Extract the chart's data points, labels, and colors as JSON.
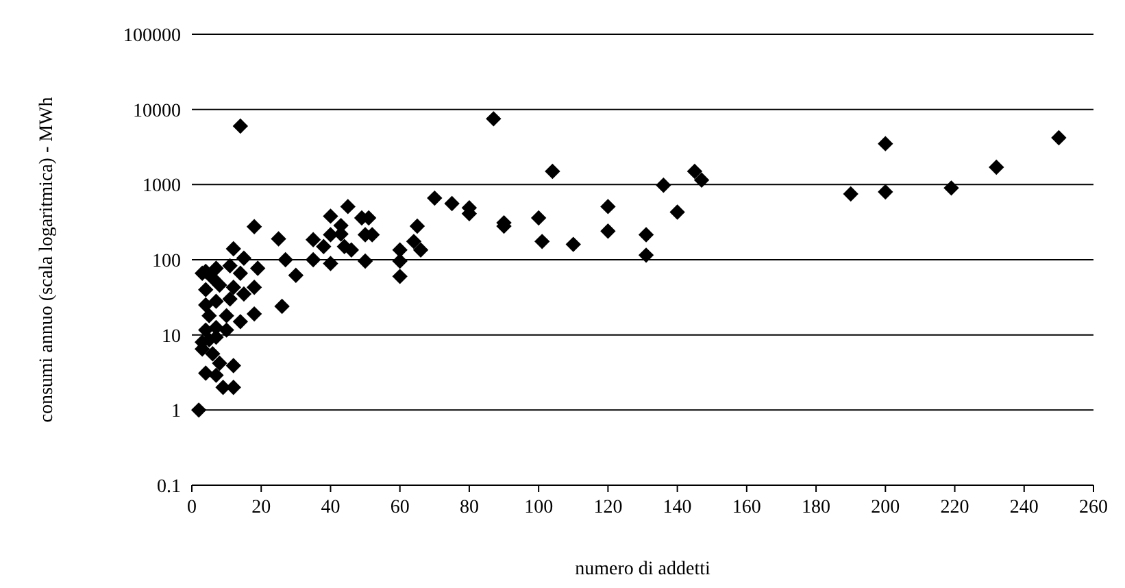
{
  "chart_data": {
    "type": "scatter",
    "xlabel": "numero di addetti",
    "ylabel": "consumi annuo (scala logaritmica) - MWh",
    "x": [
      2,
      18,
      25,
      27,
      30,
      26,
      12,
      15,
      19,
      4,
      7,
      11,
      14,
      4,
      8,
      12,
      18,
      4,
      7,
      11,
      15,
      5,
      10,
      14,
      18,
      4,
      7,
      10,
      3,
      5,
      7,
      3,
      6,
      8,
      4,
      7,
      12,
      9,
      12,
      6,
      3,
      35,
      38,
      40,
      40,
      43,
      35,
      40,
      44,
      14,
      43,
      45,
      49,
      51,
      50,
      52,
      46,
      50,
      60,
      60,
      60,
      65,
      64,
      66,
      70,
      75,
      80,
      80,
      87,
      90,
      90,
      100,
      101,
      104,
      110,
      120,
      120,
      131,
      131,
      136,
      140,
      145,
      147,
      190,
      200,
      200,
      219,
      232,
      250
    ],
    "values": [
      1,
      275,
      190,
      100,
      62,
      24,
      140,
      105,
      77,
      70,
      77,
      83,
      66,
      40,
      46,
      43,
      43,
      25,
      28,
      30,
      35,
      18,
      18,
      15,
      19,
      11.6,
      12.5,
      11.6,
      8,
      8.6,
      9.3,
      6.5,
      5.6,
      4.2,
      3.1,
      2.9,
      3.9,
      2,
      2,
      57,
      66,
      185,
      150,
      215,
      380,
      285,
      100,
      89,
      150,
      6000,
      220,
      510,
      360,
      360,
      215,
      215,
      135,
      96,
      135,
      96,
      60,
      280,
      175,
      135,
      660,
      560,
      490,
      410,
      7500,
      280,
      310,
      360,
      175,
      1500,
      160,
      510,
      240,
      215,
      115,
      980,
      430,
      1500,
      1150,
      750,
      3500,
      800,
      900,
      1700,
      4200
    ],
    "color": "#000000",
    "marker": "diamond",
    "log": "y",
    "xlim": [
      0,
      260
    ],
    "xticks": [
      0,
      20,
      40,
      60,
      80,
      100,
      120,
      140,
      160,
      180,
      200,
      220,
      240,
      260
    ],
    "ylim": [
      0.1,
      100000
    ],
    "yticks": [
      0.1,
      1,
      10,
      100,
      1000,
      10000,
      100000
    ],
    "grid": "y"
  }
}
